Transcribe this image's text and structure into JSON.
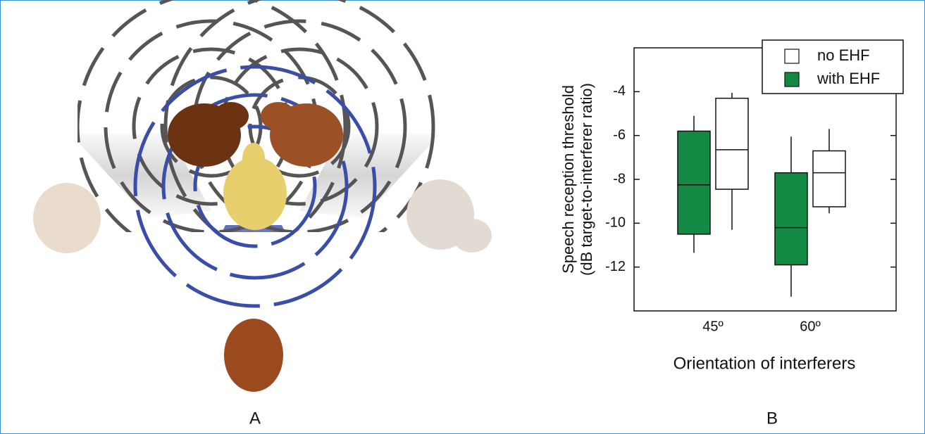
{
  "panel_labels": [
    "A",
    "B"
  ],
  "chart_data": {
    "type": "box",
    "xlabel": "Orientation of interferers",
    "ylabel": [
      "Speech reception threshold",
      "(dB target-to-interferer ratio)"
    ],
    "categories": [
      "45º",
      "60º"
    ],
    "ylim": [
      -14,
      -2
    ],
    "yticks": [
      -4,
      -6,
      -8,
      -10,
      -12
    ],
    "legend": "upper right",
    "series": [
      {
        "name": "with EHF",
        "color": "#138a43",
        "values": [
          {
            "min": -11.35,
            "q1": -10.5,
            "median": -8.25,
            "q3": -5.8,
            "max": -5.1
          },
          {
            "min": -13.35,
            "q1": -11.9,
            "median": -10.2,
            "q3": -7.7,
            "max": -6.05
          }
        ]
      },
      {
        "name": "no EHF",
        "color": "#ffffff",
        "values": [
          {
            "min": -10.3,
            "q1": -8.45,
            "median": -6.65,
            "q3": -4.3,
            "max": -4.05
          },
          {
            "min": -9.55,
            "q1": -9.25,
            "median": -7.7,
            "q3": -6.7,
            "max": -5.7
          }
        ]
      }
    ]
  }
}
